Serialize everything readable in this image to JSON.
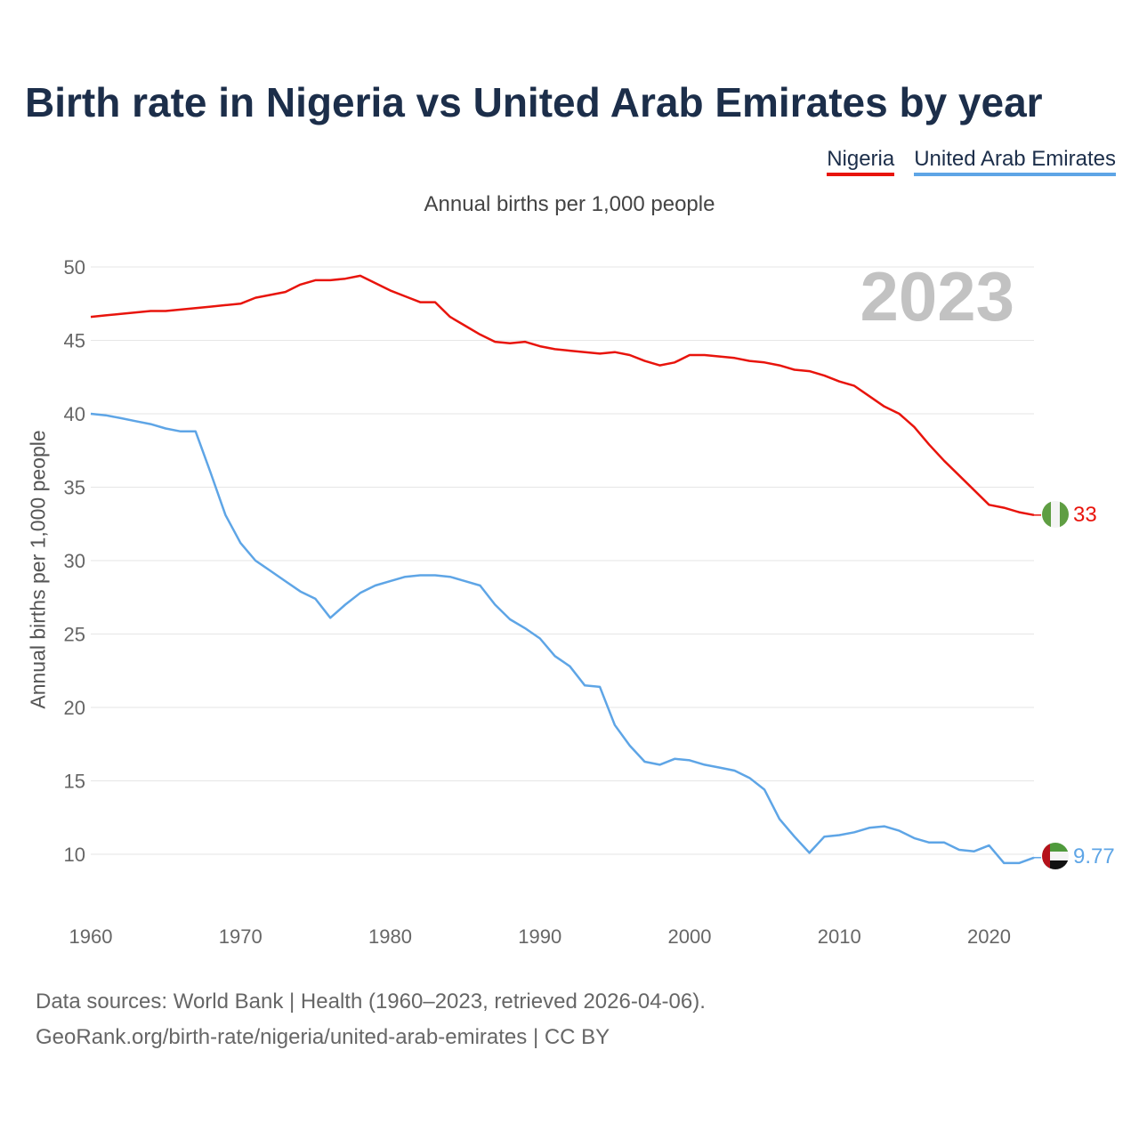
{
  "header": {
    "title": "Birth rate in Nigeria vs United Arab Emirates by year",
    "subtitle": "Annual births per 1,000 people"
  },
  "legend": [
    {
      "label": "Nigeria",
      "color": "#e8140c"
    },
    {
      "label": "United Arab Emirates",
      "color": "#5ea5e6"
    }
  ],
  "footer": {
    "line1": "Data sources: World Bank | Health (1960–2023, retrieved 2026-04-06).",
    "line2": "GeoRank.org/birth-rate/nigeria/united-arab-emirates | CC BY"
  },
  "colors": {
    "nigeria": "#e8140c",
    "uae": "#5ea5e6",
    "grid": "#e6e6e6",
    "year_label": "#c2c2c2"
  },
  "chart_data": {
    "type": "line",
    "title": "Birth rate in Nigeria vs United Arab Emirates by year",
    "xlabel": "",
    "ylabel": "Annual births per 1,000 people",
    "year_label": "2023",
    "xlim": [
      1960,
      2023
    ],
    "ylim": [
      7,
      50
    ],
    "x_ticks": [
      1960,
      1970,
      1980,
      1990,
      2000,
      2010,
      2020
    ],
    "y_ticks": [
      10,
      15,
      20,
      25,
      30,
      35,
      40,
      45,
      50
    ],
    "grid": true,
    "x": [
      1960,
      1961,
      1962,
      1963,
      1964,
      1965,
      1966,
      1967,
      1968,
      1969,
      1970,
      1971,
      1972,
      1973,
      1974,
      1975,
      1976,
      1977,
      1978,
      1979,
      1980,
      1981,
      1982,
      1983,
      1984,
      1985,
      1986,
      1987,
      1988,
      1989,
      1990,
      1991,
      1992,
      1993,
      1994,
      1995,
      1996,
      1997,
      1998,
      1999,
      2000,
      2001,
      2002,
      2003,
      2004,
      2005,
      2006,
      2007,
      2008,
      2009,
      2010,
      2011,
      2012,
      2013,
      2014,
      2015,
      2016,
      2017,
      2018,
      2019,
      2020,
      2021,
      2022,
      2023
    ],
    "series": [
      {
        "name": "Nigeria",
        "end_label": "33",
        "flag": "nigeria-flag",
        "values": [
          46.6,
          46.7,
          46.8,
          46.9,
          47.0,
          47.0,
          47.1,
          47.2,
          47.3,
          47.4,
          47.5,
          47.9,
          48.1,
          48.3,
          48.8,
          49.1,
          49.1,
          49.2,
          49.4,
          48.9,
          48.4,
          48.0,
          47.6,
          47.6,
          46.6,
          46.0,
          45.4,
          44.9,
          44.8,
          44.9,
          44.6,
          44.4,
          44.3,
          44.2,
          44.1,
          44.2,
          44.0,
          43.6,
          43.3,
          43.5,
          44.0,
          44.0,
          43.9,
          43.8,
          43.6,
          43.5,
          43.3,
          43.0,
          42.9,
          42.6,
          42.2,
          41.9,
          41.2,
          40.5,
          40.0,
          39.1,
          37.9,
          36.8,
          35.8,
          34.8,
          33.8,
          33.6,
          33.3,
          33.1
        ]
      },
      {
        "name": "United Arab Emirates",
        "end_label": "9.77",
        "flag": "uae-flag",
        "values": [
          40.0,
          39.9,
          39.7,
          39.5,
          39.3,
          39.0,
          38.8,
          38.8,
          36.0,
          33.1,
          31.2,
          30.0,
          29.3,
          28.6,
          27.9,
          27.4,
          26.1,
          27.0,
          27.8,
          28.3,
          28.6,
          28.9,
          29.0,
          29.0,
          28.9,
          28.6,
          28.3,
          27.0,
          26.0,
          25.4,
          24.7,
          23.5,
          22.8,
          21.5,
          21.4,
          18.8,
          17.4,
          16.3,
          16.1,
          16.5,
          16.4,
          16.1,
          15.9,
          15.7,
          15.2,
          14.4,
          12.4,
          11.2,
          10.1,
          11.2,
          11.3,
          11.5,
          11.8,
          11.9,
          11.6,
          11.1,
          10.8,
          10.8,
          10.3,
          10.2,
          10.6,
          9.4,
          9.4,
          9.77
        ]
      }
    ]
  }
}
